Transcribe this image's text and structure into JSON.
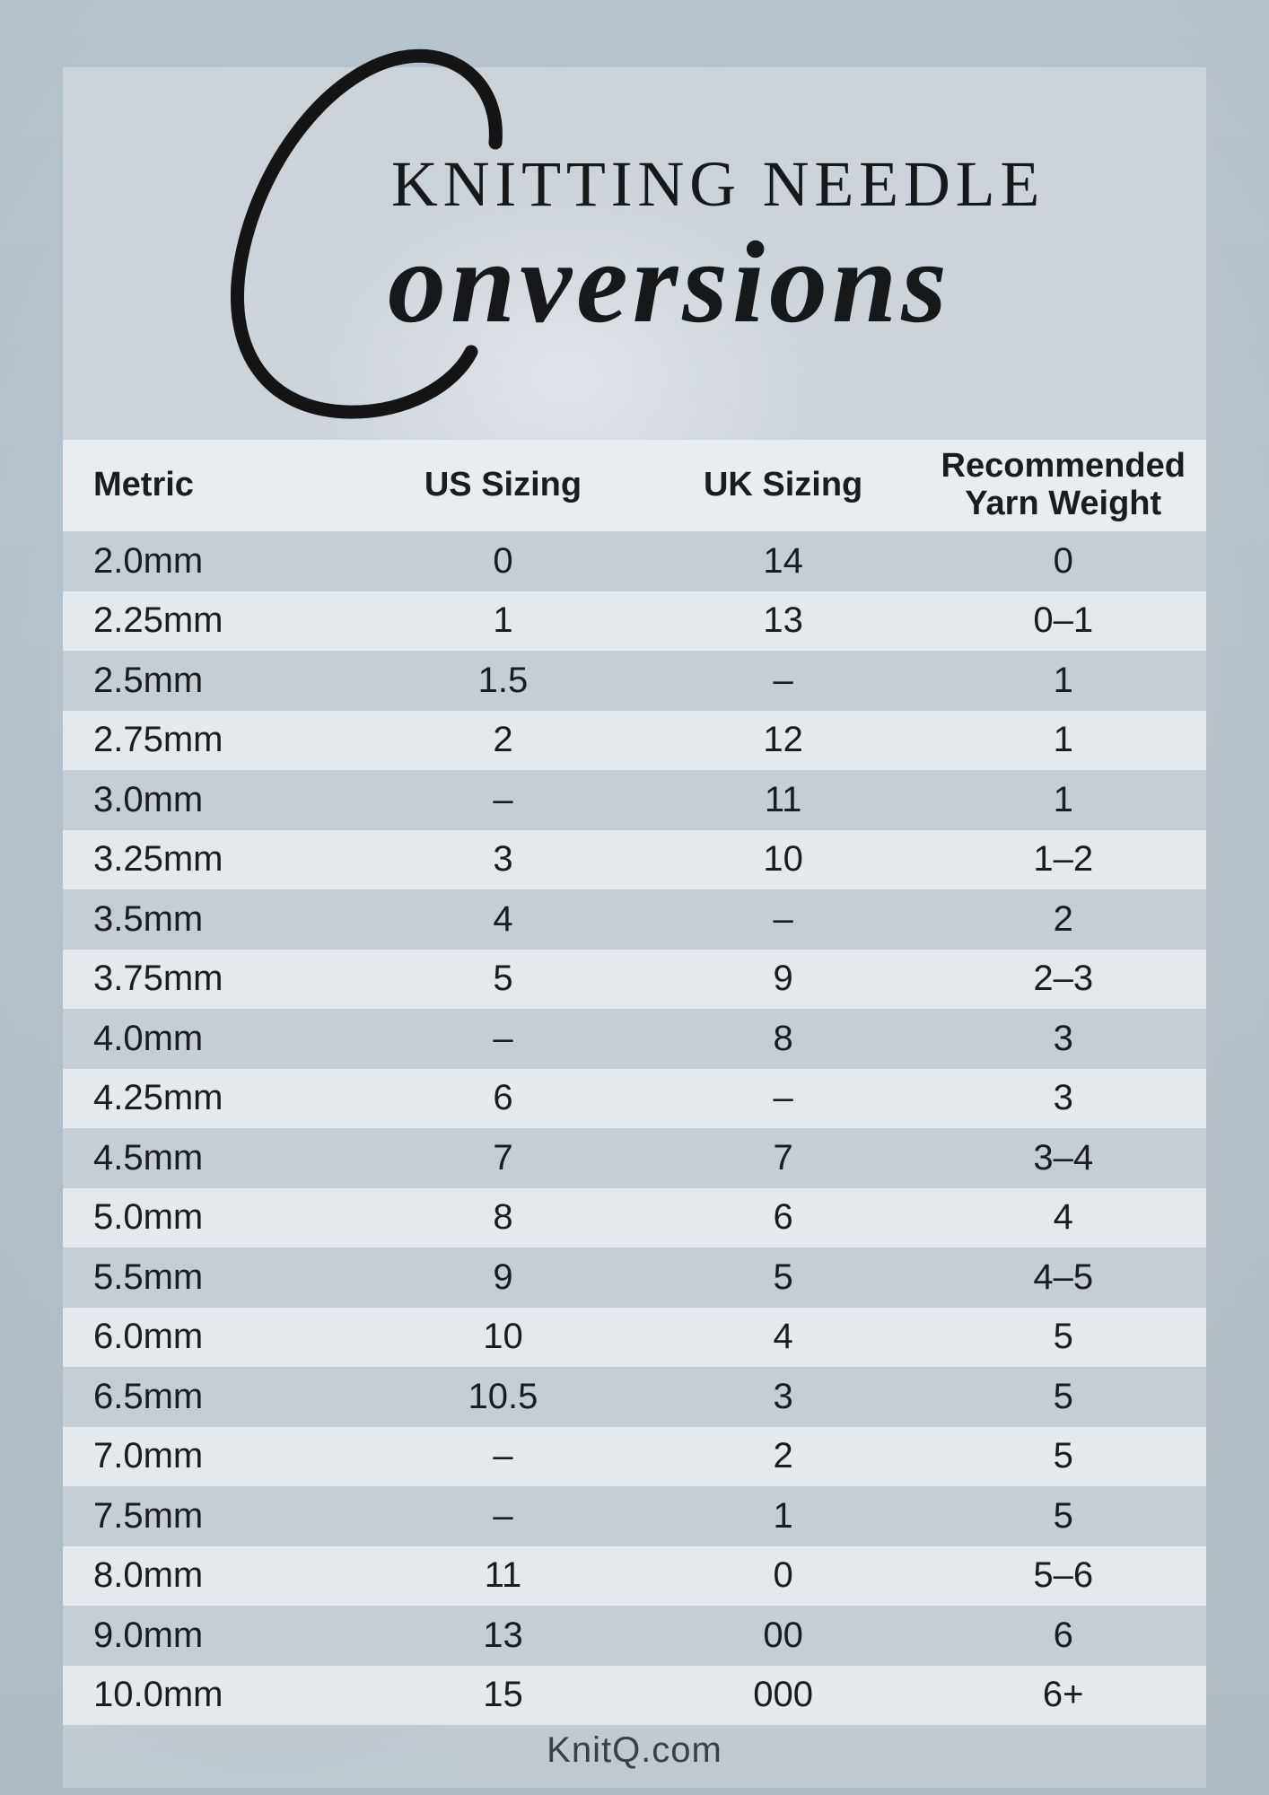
{
  "title": {
    "line1": "KNITTING NEEDLE",
    "script_initial": "C",
    "script_rest": "onversions"
  },
  "table": {
    "columns": [
      "Metric",
      "US Sizing",
      "UK Sizing",
      "Recommended\nYarn Weight"
    ],
    "rows": [
      [
        "2.0mm",
        "0",
        "14",
        "0"
      ],
      [
        "2.25mm",
        "1",
        "13",
        "0–1"
      ],
      [
        "2.5mm",
        "1.5",
        "–",
        "1"
      ],
      [
        "2.75mm",
        "2",
        "12",
        "1"
      ],
      [
        "3.0mm",
        "–",
        "11",
        "1"
      ],
      [
        "3.25mm",
        "3",
        "10",
        "1–2"
      ],
      [
        "3.5mm",
        "4",
        "–",
        "2"
      ],
      [
        "3.75mm",
        "5",
        "9",
        "2–3"
      ],
      [
        "4.0mm",
        "–",
        "8",
        "3"
      ],
      [
        "4.25mm",
        "6",
        "–",
        "3"
      ],
      [
        "4.5mm",
        "7",
        "7",
        "3–4"
      ],
      [
        "5.0mm",
        "8",
        "6",
        "4"
      ],
      [
        "5.5mm",
        "9",
        "5",
        "4–5"
      ],
      [
        "6.0mm",
        "10",
        "4",
        "5"
      ],
      [
        "6.5mm",
        "10.5",
        "3",
        "5"
      ],
      [
        "7.0mm",
        "–",
        "2",
        "5"
      ],
      [
        "7.5mm",
        "–",
        "1",
        "5"
      ],
      [
        "8.0mm",
        "11",
        "0",
        "5–6"
      ],
      [
        "9.0mm",
        "13",
        "00",
        "6"
      ],
      [
        "10.0mm",
        "15",
        "000",
        "6+"
      ]
    ]
  },
  "footer": {
    "site": "KnitQ.com"
  },
  "colors": {
    "outer_bg": "#b2bfc9",
    "panel_bg": "#ccd4da",
    "header_band": "#e9edf1",
    "row_light": "#e4e9ed",
    "row_dark": "#c5ced5",
    "ink": "#1a1c1e",
    "title_ink": "#17181a",
    "footer_ink": "#3a4046"
  },
  "chart_data": {
    "type": "table",
    "title": "Knitting Needle Conversions",
    "columns": [
      "Metric",
      "US Sizing",
      "UK Sizing",
      "Recommended Yarn Weight"
    ],
    "rows": [
      [
        "2.0mm",
        "0",
        "14",
        "0"
      ],
      [
        "2.25mm",
        "1",
        "13",
        "0–1"
      ],
      [
        "2.5mm",
        "1.5",
        "–",
        "1"
      ],
      [
        "2.75mm",
        "2",
        "12",
        "1"
      ],
      [
        "3.0mm",
        "–",
        "11",
        "1"
      ],
      [
        "3.25mm",
        "3",
        "10",
        "1–2"
      ],
      [
        "3.5mm",
        "4",
        "–",
        "2"
      ],
      [
        "3.75mm",
        "5",
        "9",
        "2–3"
      ],
      [
        "4.0mm",
        "–",
        "8",
        "3"
      ],
      [
        "4.25mm",
        "6",
        "–",
        "3"
      ],
      [
        "4.5mm",
        "7",
        "7",
        "3–4"
      ],
      [
        "5.0mm",
        "8",
        "6",
        "4"
      ],
      [
        "5.5mm",
        "9",
        "5",
        "4–5"
      ],
      [
        "6.0mm",
        "10",
        "4",
        "5"
      ],
      [
        "6.5mm",
        "10.5",
        "3",
        "5"
      ],
      [
        "7.0mm",
        "–",
        "2",
        "5"
      ],
      [
        "7.5mm",
        "–",
        "1",
        "5"
      ],
      [
        "8.0mm",
        "11",
        "0",
        "5–6"
      ],
      [
        "9.0mm",
        "13",
        "00",
        "6"
      ],
      [
        "10.0mm",
        "15",
        "000",
        "6+"
      ]
    ]
  }
}
